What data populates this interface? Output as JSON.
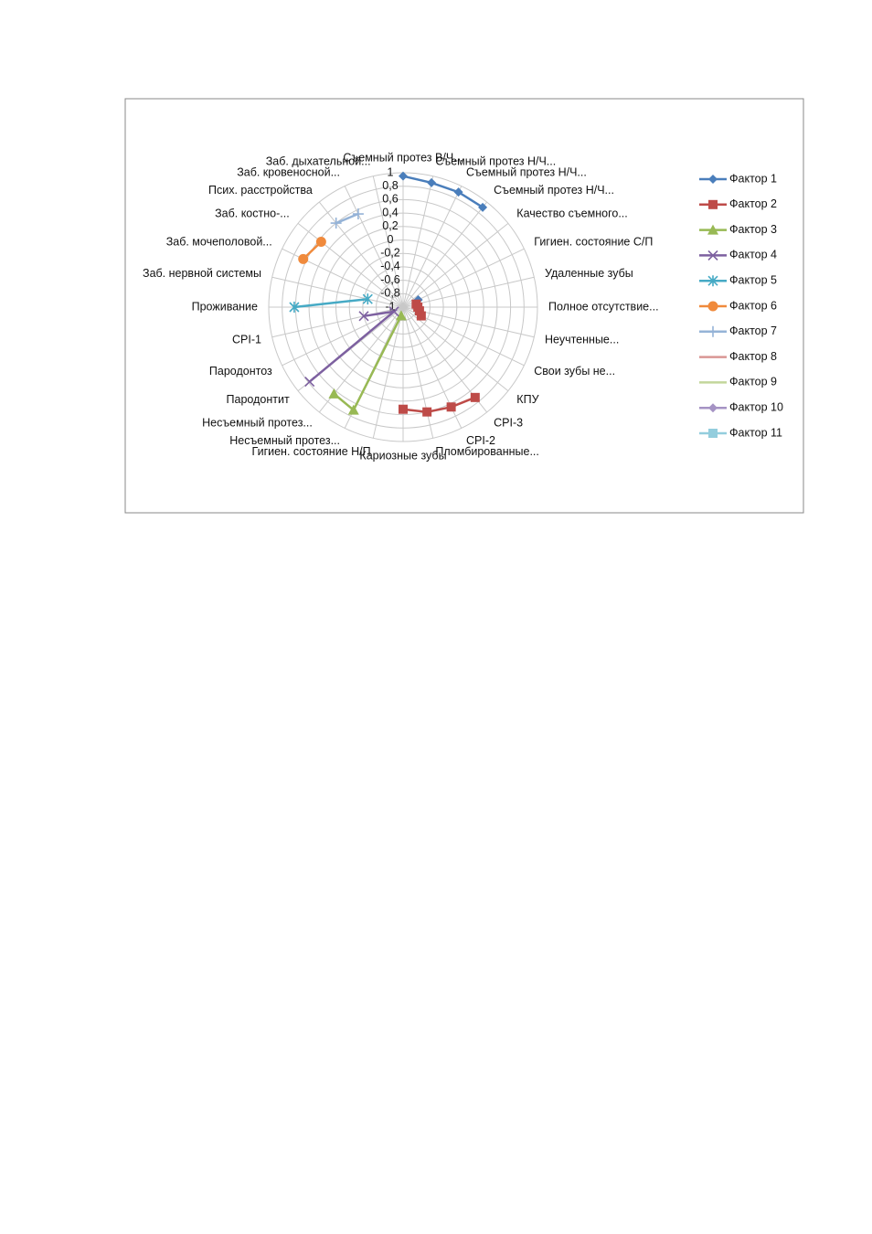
{
  "chart_data": {
    "type": "radar",
    "categories": [
      "Съемный протез В/Ч...",
      "Съемный протез Н/Ч...",
      "Съемный протез Н/Ч...",
      "Съемный протез Н/Ч...",
      "Качество съемного...",
      "Гигиен. состояние С/П",
      "Удаленные зубы",
      "Полное отсутствие...",
      "Неучтенные...",
      "Свои зубы не...",
      "КПУ",
      "CPI-3",
      "CPI-2",
      "Пломбированные...",
      "Кариозные зубы",
      "Гигиен. состояние Н/П",
      "Несъемный протез...",
      "Несъемный протез...",
      "Пародонтит",
      "Пародонтоз",
      "CPI-1",
      "Проживание",
      "Заб. нервной системы",
      "Заб. мочеполовой...",
      "Заб. костно-...",
      "Псих. расстройства",
      "Заб. кровеносной...",
      "Заб. дыхательной..."
    ],
    "ylim": [
      -1,
      1
    ],
    "yticks": [
      -1,
      {
        "value": -0.8,
        "label": "-0,8"
      },
      {
        "value": -0.6,
        "label": "-0,6"
      },
      {
        "value": -0.4,
        "label": "-0,4"
      },
      {
        "value": -0.2,
        "label": "-0,2"
      },
      0,
      {
        "value": 0.2,
        "label": "0,2"
      },
      {
        "value": 0.4,
        "label": "0,4"
      },
      {
        "value": 0.6,
        "label": "0,6"
      },
      {
        "value": 0.8,
        "label": "0,8"
      },
      1
    ],
    "grid": true,
    "legend": "right",
    "series": [
      {
        "name": "Фактор 1",
        "color": "#4a7ebb",
        "marker": "diamond",
        "values": [
          0.95,
          0.9,
          0.9,
          0.9,
          null,
          -0.75,
          null,
          null,
          null,
          null,
          null,
          null,
          null,
          null,
          null,
          null,
          null,
          null,
          null,
          null,
          null,
          null,
          null,
          null,
          null,
          null,
          null,
          null
        ]
      },
      {
        "name": "Фактор 2",
        "color": "#be4b48",
        "marker": "square",
        "values": [
          null,
          null,
          null,
          null,
          null,
          null,
          -0.8,
          -0.78,
          -0.75,
          -0.7,
          null,
          0.72,
          0.65,
          0.6,
          0.52,
          null,
          null,
          null,
          null,
          null,
          null,
          null,
          null,
          null,
          null,
          null,
          null,
          null
        ]
      },
      {
        "name": "Фактор 3",
        "color": "#98b954",
        "marker": "triangle",
        "values": [
          null,
          null,
          null,
          null,
          null,
          null,
          null,
          null,
          null,
          null,
          null,
          null,
          null,
          null,
          null,
          -0.87,
          0.7,
          0.65,
          null,
          null,
          null,
          null,
          null,
          null,
          null,
          null,
          null,
          null
        ]
      },
      {
        "name": "Фактор 4",
        "color": "#7d60a0",
        "marker": "x",
        "values": [
          null,
          null,
          null,
          null,
          null,
          null,
          null,
          null,
          null,
          null,
          null,
          null,
          null,
          null,
          null,
          null,
          null,
          null,
          0.78,
          -0.85,
          -0.4,
          null,
          null,
          null,
          null,
          null,
          null,
          null
        ]
      },
      {
        "name": "Фактор 5",
        "color": "#46aac5",
        "marker": "star",
        "values": [
          null,
          null,
          null,
          null,
          null,
          null,
          null,
          null,
          null,
          null,
          null,
          null,
          null,
          null,
          null,
          null,
          null,
          null,
          null,
          null,
          null,
          0.62,
          -0.46,
          null,
          null,
          null,
          null,
          null
        ]
      },
      {
        "name": "Фактор 6",
        "color": "#f08a3c",
        "marker": "circle",
        "values": [
          null,
          null,
          null,
          null,
          null,
          null,
          null,
          null,
          null,
          null,
          null,
          null,
          null,
          null,
          null,
          null,
          null,
          null,
          null,
          null,
          null,
          null,
          null,
          0.65,
          0.56,
          null,
          null,
          null
        ]
      },
      {
        "name": "Фактор 7",
        "color": "#95b3d7",
        "marker": "plus",
        "values": [
          null,
          null,
          null,
          null,
          null,
          null,
          null,
          null,
          null,
          null,
          null,
          null,
          null,
          null,
          null,
          null,
          null,
          null,
          null,
          null,
          null,
          null,
          null,
          null,
          null,
          0.6,
          0.54,
          null
        ]
      },
      {
        "name": "Фактор 8",
        "color": "#d99694",
        "marker": "none",
        "values": [
          null,
          null,
          null,
          null,
          null,
          null,
          null,
          null,
          null,
          null,
          null,
          null,
          null,
          null,
          null,
          null,
          null,
          null,
          null,
          null,
          null,
          null,
          null,
          null,
          null,
          null,
          null,
          null
        ]
      },
      {
        "name": "Фактор 9",
        "color": "#c3d69b",
        "marker": "none",
        "values": [
          null,
          null,
          null,
          null,
          null,
          null,
          null,
          null,
          null,
          null,
          null,
          null,
          null,
          null,
          null,
          null,
          null,
          null,
          null,
          null,
          null,
          null,
          null,
          null,
          null,
          null,
          null,
          null
        ]
      },
      {
        "name": "Фактор 10",
        "color": "#a593c4",
        "marker": "diamond",
        "values": [
          null,
          null,
          null,
          null,
          null,
          null,
          null,
          null,
          null,
          null,
          null,
          null,
          null,
          null,
          null,
          null,
          null,
          null,
          null,
          null,
          null,
          null,
          null,
          null,
          null,
          null,
          null,
          null
        ]
      },
      {
        "name": "Фактор 11",
        "color": "#93cddd",
        "marker": "square",
        "values": [
          null,
          null,
          null,
          null,
          null,
          null,
          null,
          null,
          null,
          null,
          null,
          null,
          null,
          null,
          null,
          null,
          null,
          null,
          null,
          null,
          null,
          null,
          null,
          null,
          null,
          null,
          null,
          null
        ]
      }
    ]
  }
}
